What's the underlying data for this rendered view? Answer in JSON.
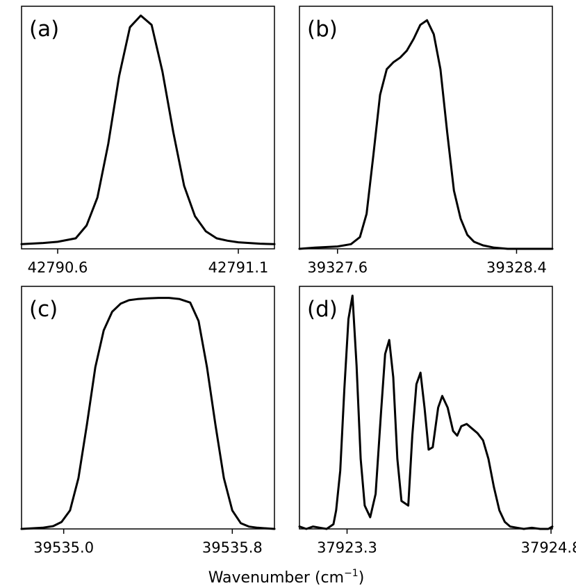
{
  "figure": {
    "xlabel": "Wavenumber (cm",
    "xlabel_sup": "−1",
    "xlabel_close": ")"
  },
  "chart_data": [
    {
      "type": "line",
      "panel_label": "(a)",
      "xlim": [
        42790.5,
        42791.2
      ],
      "ylim": [
        0,
        1.04
      ],
      "xticks": [
        42790.6,
        42791.1
      ],
      "xtick_labels": [
        "42790.6",
        "42791.1"
      ],
      "yticks": [],
      "x": [
        42790.5,
        42790.56,
        42790.6,
        42790.65,
        42790.68,
        42790.71,
        42790.74,
        42790.77,
        42790.8,
        42790.83,
        42790.86,
        42790.89,
        42790.92,
        42790.95,
        42790.98,
        42791.01,
        42791.04,
        42791.07,
        42791.1,
        42791.13,
        42791.16,
        42791.2
      ],
      "y": [
        0.02,
        0.025,
        0.03,
        0.045,
        0.1,
        0.22,
        0.45,
        0.74,
        0.95,
        1.0,
        0.96,
        0.76,
        0.5,
        0.27,
        0.14,
        0.075,
        0.045,
        0.035,
        0.028,
        0.025,
        0.022,
        0.02
      ],
      "series": [
        {
          "name": "",
          "color": "#000000"
        }
      ]
    },
    {
      "type": "line",
      "panel_label": "(b)",
      "xlim": [
        39327.43,
        39328.56
      ],
      "ylim": [
        0,
        1.04
      ],
      "xticks": [
        39327.6,
        39328.4
      ],
      "xtick_labels": [
        "39327.6",
        "39328.4"
      ],
      "yticks": [],
      "x": [
        39327.43,
        39327.5,
        39327.6,
        39327.66,
        39327.7,
        39327.73,
        39327.76,
        39327.79,
        39327.82,
        39327.85,
        39327.88,
        39327.91,
        39327.94,
        39327.97,
        39328.0,
        39328.03,
        39328.06,
        39328.09,
        39328.12,
        39328.15,
        39328.18,
        39328.21,
        39328.25,
        39328.3,
        39328.36,
        39328.45,
        39328.56
      ],
      "y": [
        0.0,
        0.005,
        0.01,
        0.02,
        0.05,
        0.15,
        0.4,
        0.66,
        0.77,
        0.8,
        0.82,
        0.85,
        0.9,
        0.96,
        0.98,
        0.92,
        0.77,
        0.5,
        0.25,
        0.13,
        0.06,
        0.03,
        0.015,
        0.005,
        0.0,
        0.0,
        0.0
      ],
      "series": [
        {
          "name": "",
          "color": "#000000"
        }
      ]
    },
    {
      "type": "line",
      "panel_label": "(c)",
      "xlim": [
        39534.8,
        39536.0
      ],
      "ylim": [
        0,
        1.05
      ],
      "xticks": [
        39535.0,
        39535.8
      ],
      "xtick_labels": [
        "39535.0",
        "39535.8"
      ],
      "yticks": [],
      "x": [
        39534.8,
        39534.9,
        39534.95,
        39534.99,
        39535.03,
        39535.07,
        39535.11,
        39535.15,
        39535.19,
        39535.23,
        39535.27,
        39535.31,
        39535.35,
        39535.4,
        39535.45,
        39535.5,
        39535.55,
        39535.6,
        39535.64,
        39535.68,
        39535.72,
        39535.76,
        39535.8,
        39535.84,
        39535.88,
        39535.92,
        39536.0
      ],
      "y": [
        0.0,
        0.005,
        0.012,
        0.03,
        0.08,
        0.22,
        0.45,
        0.7,
        0.86,
        0.94,
        0.975,
        0.99,
        0.995,
        0.998,
        1.0,
        1.0,
        0.995,
        0.98,
        0.9,
        0.7,
        0.45,
        0.22,
        0.08,
        0.025,
        0.01,
        0.005,
        0.0
      ],
      "series": [
        {
          "name": "",
          "color": "#000000"
        }
      ]
    },
    {
      "type": "line",
      "panel_label": "(d)",
      "xlim": [
        37922.95,
        37924.81
      ],
      "ylim": [
        0,
        1.04
      ],
      "xticks": [
        37923.3,
        37924.8
      ],
      "xtick_labels": [
        "37923.3",
        "37924.8"
      ],
      "yticks": [],
      "x": [
        37922.95,
        37923.0,
        37923.05,
        37923.1,
        37923.15,
        37923.2,
        37923.22,
        37923.25,
        37923.28,
        37923.31,
        37923.34,
        37923.37,
        37923.4,
        37923.43,
        37923.47,
        37923.51,
        37923.55,
        37923.58,
        37923.61,
        37923.64,
        37923.67,
        37923.7,
        37923.75,
        37923.78,
        37923.81,
        37923.84,
        37923.87,
        37923.9,
        37923.93,
        37923.97,
        37924.0,
        37924.04,
        37924.08,
        37924.11,
        37924.14,
        37924.18,
        37924.22,
        37924.26,
        37924.3,
        37924.34,
        37924.38,
        37924.42,
        37924.46,
        37924.5,
        37924.55,
        37924.6,
        37924.66,
        37924.72,
        37924.78,
        37924.81
      ],
      "y": [
        0.01,
        0.0,
        0.01,
        0.005,
        0.0,
        0.02,
        0.08,
        0.25,
        0.6,
        0.9,
        1.0,
        0.7,
        0.3,
        0.1,
        0.05,
        0.15,
        0.5,
        0.75,
        0.81,
        0.65,
        0.3,
        0.12,
        0.1,
        0.4,
        0.62,
        0.67,
        0.52,
        0.34,
        0.35,
        0.52,
        0.57,
        0.52,
        0.42,
        0.4,
        0.44,
        0.45,
        0.43,
        0.41,
        0.38,
        0.3,
        0.18,
        0.08,
        0.03,
        0.01,
        0.005,
        0.0,
        0.005,
        0.0,
        0.0,
        0.01
      ],
      "series": [
        {
          "name": "",
          "color": "#000000"
        }
      ]
    }
  ]
}
